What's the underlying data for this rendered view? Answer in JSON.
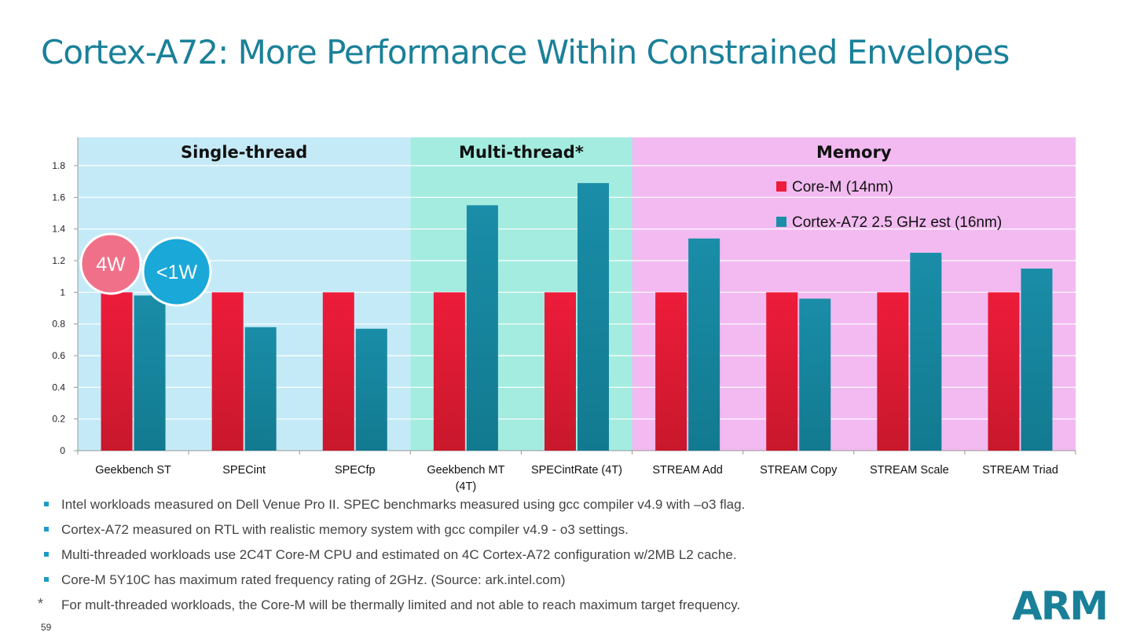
{
  "title": "Cortex-A72: More Performance Within Constrained Envelopes",
  "chart_data": {
    "type": "bar",
    "categories": [
      "Geekbench ST",
      "SPECint",
      "SPECfp",
      "Geekbench MT (4T)",
      "SPECintRate (4T)",
      "STREAM Add",
      "STREAM Copy",
      "STREAM  Scale",
      "STREAM Triad"
    ],
    "series": [
      {
        "name": "Core-M (14nm)",
        "color": "#ed1c3a",
        "values": [
          1,
          1,
          1,
          1,
          1,
          1,
          1,
          1,
          1
        ]
      },
      {
        "name": "Cortex-A72 2.5 GHz est (16nm)",
        "color": "#1a8da8",
        "values": [
          0.98,
          0.78,
          0.77,
          1.55,
          1.69,
          1.34,
          0.96,
          1.25,
          1.15
        ]
      }
    ],
    "ylim": [
      0,
      1.8
    ],
    "yticks": [
      "0",
      "0.2",
      "0.4",
      "0.6",
      "0.8",
      "1",
      "1.2",
      "1.4",
      "1.6",
      "1.8"
    ],
    "grid": true,
    "legend_position": "top-right",
    "groups": [
      {
        "label": "Single-thread",
        "categories": [
          0,
          2
        ],
        "color": "#c5eaf7"
      },
      {
        "label": "Multi-thread*",
        "categories": [
          3,
          4
        ],
        "color": "#a4ece0"
      },
      {
        "label": "Memory",
        "categories": [
          5,
          8
        ],
        "color": "#f2baf0"
      }
    ],
    "annotations": [
      {
        "text": "4W",
        "color": "#f0708a"
      },
      {
        "text": "<1W",
        "color": "#1aa8d8"
      }
    ]
  },
  "bullets": [
    {
      "marker": "square",
      "text": "Intel workloads measured on Dell Venue Pro II.  SPEC benchmarks measured using gcc compiler v4.9 with –o3 flag."
    },
    {
      "marker": "square",
      "text": "Cortex-A72 measured on RTL with realistic memory system with gcc compiler v4.9 - o3 settings."
    },
    {
      "marker": "square",
      "text": "Multi-threaded workloads use 2C4T Core-M CPU and estimated on 4C Cortex-A72 configuration w/2MB L2 cache."
    },
    {
      "marker": "square",
      "text": "Core-M 5Y10C  has maximum  rated frequency rating of 2GHz. (Source: ark.intel.com)"
    },
    {
      "marker": "star",
      "text": "For mult-threaded workloads, the Core-M will be thermally limited  and not able to reach maximum target  frequency."
    }
  ],
  "star_marker": "*",
  "page_number": "59",
  "logo": "ARM"
}
